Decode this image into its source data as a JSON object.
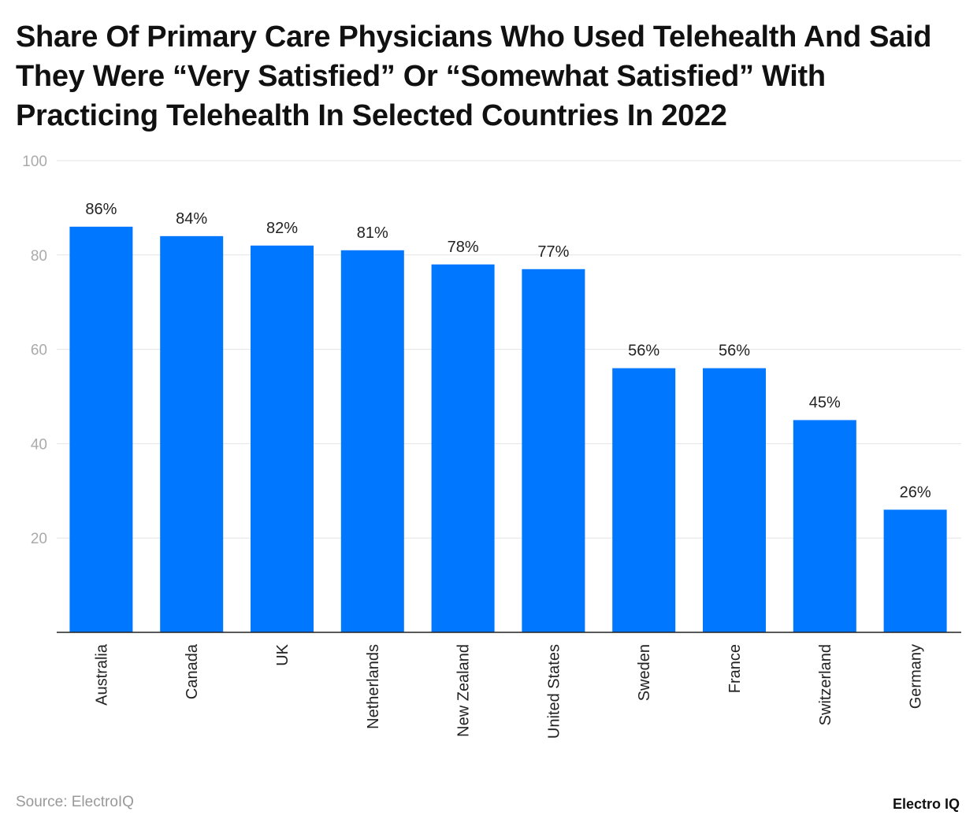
{
  "chart_data": {
    "type": "bar",
    "title": "Share Of Primary Care Physicians Who Used Telehealth And Said They Were “Very Satisfied” Or “Somewhat Satisfied” With Practicing Telehealth In Selected Countries In 2022",
    "categories": [
      "Australia",
      "Canada",
      "UK",
      "Netherlands",
      "New Zealand",
      "United States",
      "Sweden",
      "France",
      "Switzerland",
      "Germany"
    ],
    "values": [
      86,
      84,
      82,
      81,
      78,
      77,
      56,
      56,
      45,
      26
    ],
    "value_labels": [
      "86%",
      "84%",
      "82%",
      "81%",
      "78%",
      "77%",
      "56%",
      "56%",
      "45%",
      "26%"
    ],
    "ylim": [
      0,
      100
    ],
    "yticks": [
      20,
      40,
      60,
      80,
      100
    ],
    "xlabel": "",
    "ylabel": "",
    "grid": true,
    "bar_color": "#0077FF"
  },
  "footer": {
    "source": "Source: ElectroIQ",
    "logo": "Electro IQ"
  }
}
